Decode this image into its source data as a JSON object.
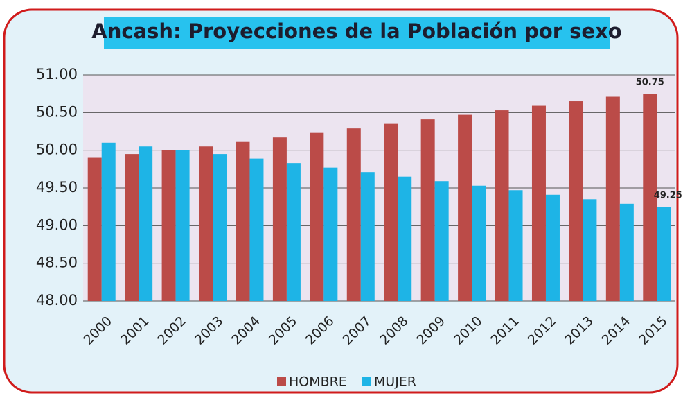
{
  "chart_data": {
    "type": "bar",
    "title": "Ancash: Proyecciones de la Población por sexo",
    "categories": [
      "2000",
      "2001",
      "2002",
      "2003",
      "2004",
      "2005",
      "2006",
      "2007",
      "2008",
      "2009",
      "2010",
      "2011",
      "2012",
      "2013",
      "2014",
      "2015"
    ],
    "series": [
      {
        "name": "HOMBRE",
        "color": "#bb4b48",
        "values": [
          49.9,
          49.95,
          50.0,
          50.05,
          50.11,
          50.17,
          50.23,
          50.29,
          50.35,
          50.41,
          50.47,
          50.53,
          50.59,
          50.65,
          50.71,
          50.75
        ],
        "value_labels": [
          null,
          null,
          null,
          null,
          null,
          null,
          null,
          null,
          null,
          null,
          null,
          null,
          null,
          null,
          null,
          "50.75"
        ]
      },
      {
        "name": "MUJER",
        "color": "#1eb4e6",
        "values": [
          50.1,
          50.05,
          50.0,
          49.95,
          49.89,
          49.83,
          49.77,
          49.71,
          49.65,
          49.59,
          49.53,
          49.47,
          49.41,
          49.35,
          49.29,
          49.25
        ],
        "value_labels": [
          null,
          null,
          null,
          null,
          null,
          null,
          null,
          null,
          null,
          null,
          null,
          null,
          null,
          null,
          null,
          "49.25"
        ]
      }
    ],
    "ylim": [
      48,
      51
    ],
    "yticks": [
      {
        "value": 48,
        "label": "48.00"
      },
      {
        "value": 48.5,
        "label": "48.50"
      },
      {
        "value": 49,
        "label": "49.00"
      },
      {
        "value": 49.5,
        "label": "49.50"
      },
      {
        "value": 50,
        "label": "50.00"
      },
      {
        "value": 50.5,
        "label": "50.50"
      },
      {
        "value": 51,
        "label": "51.00"
      }
    ],
    "grid": true,
    "legend": "bottom"
  }
}
